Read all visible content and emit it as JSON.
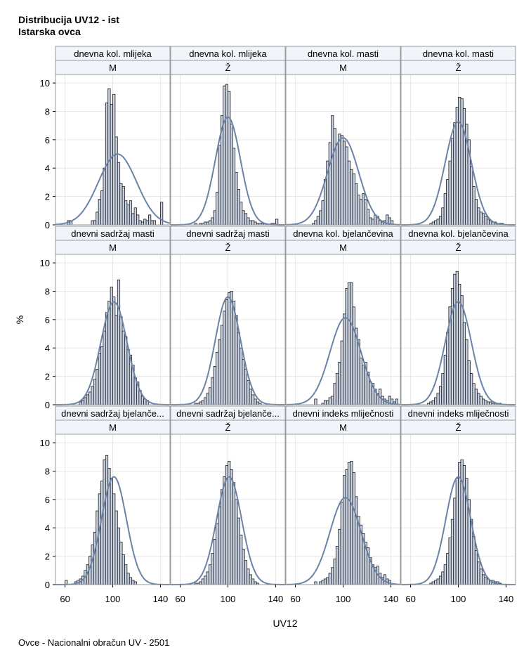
{
  "titles": [
    "Distribucija UV12 - ist",
    "Istarska ovca"
  ],
  "footnote": "Ovce - Nacionalni obračun UV - 2501",
  "colors": {
    "bar_fill": "#c9d2e3",
    "bar_stroke": "#1a1a1a",
    "curve": "#6a84a8",
    "panel_border": "#9a9a9a",
    "header_fill": "#f2f4fb",
    "grid": "#e6e6e6"
  },
  "chart_data": {
    "type": "histogram",
    "xlabel": "UV12",
    "ylabel": "%",
    "xlim": [
      52,
      148
    ],
    "ylim": [
      0,
      10.6
    ],
    "xticks": [
      60,
      100,
      140
    ],
    "yticks": [
      0,
      2,
      4,
      6,
      8,
      10
    ],
    "grid": true,
    "bin_width": 2,
    "panels": [
      {
        "trait": "dnevna kol. mlijeka",
        "sex": "M",
        "mean": 104,
        "sd": 16,
        "heights": [
          0.3,
          0.3,
          0,
          0,
          0,
          0,
          0,
          0,
          0,
          0,
          0.3,
          0.3,
          0.9,
          1.8,
          2.4,
          4,
          8.6,
          9.6,
          8.5,
          9.2,
          6.2,
          4.4,
          2.9,
          2.7,
          1.7,
          1.4,
          1.7,
          0.8,
          1.2,
          0.7,
          0.3,
          0.2,
          0.4,
          0.3,
          0.7,
          0.3,
          0.3,
          0,
          0,
          1.6
        ],
        "start": 62
      },
      {
        "trait": "dnevna kol. mlijeka",
        "sex": "Ž",
        "mean": 100,
        "sd": 10.5,
        "heights": [
          0.1,
          0,
          0.1,
          0.1,
          0.2,
          0.2,
          0.3,
          0.5,
          1,
          2.3,
          5.6,
          7.7,
          9.8,
          9.9,
          9.4,
          7.1,
          5.4,
          3.7,
          2.5,
          1.6,
          1,
          0.8,
          0.5,
          0.3,
          0.3,
          0.2,
          0.1,
          0.1,
          0.1,
          0.1,
          0,
          0,
          0.1,
          0.1,
          0.4
        ],
        "start": 72
      },
      {
        "trait": "dnevna kol. masti",
        "sex": "M",
        "mean": 100,
        "sd": 13,
        "heights": [
          0.1,
          0.3,
          0.6,
          1,
          1.7,
          3.2,
          4.5,
          5.8,
          7.7,
          6.8,
          5.7,
          6.4,
          6.3,
          5.9,
          5.5,
          4.5,
          3.9,
          3.6,
          2.9,
          2.1,
          1.8,
          2.2,
          1.8,
          1.1,
          0.5,
          0.4,
          0.7,
          0.6,
          0.3,
          0.2,
          0.3,
          0.7,
          0.5,
          0.3
        ],
        "start": 74
      },
      {
        "trait": "dnevna kol. masti",
        "sex": "Ž",
        "mean": 100,
        "sd": 11,
        "heights": [
          0.1,
          0.2,
          0.3,
          0.4,
          0.6,
          1.2,
          2.2,
          3.2,
          4.5,
          6.1,
          7.2,
          8.3,
          9,
          8.9,
          8.2,
          7.1,
          6,
          4.1,
          2.7,
          1.8,
          1.2,
          0.9,
          0.8,
          0.6,
          0.4,
          0.3,
          0.2,
          0.2,
          0.1,
          0.1,
          0.1
        ],
        "start": 76
      }
    ],
    "panels_row2": [
      {
        "trait": "dnevni sadržaj masti",
        "sex": "M",
        "mean": 101,
        "sd": 11,
        "heights": [
          0.2,
          0.3,
          0.5,
          0.7,
          0.9,
          1.3,
          1.8,
          2.5,
          3.6,
          4.1,
          5.2,
          6.5,
          7.3,
          8.3,
          7.6,
          6.3,
          8.8,
          6.2,
          5.2,
          4.8,
          3.9,
          3.5,
          2.8,
          1.9,
          1.6,
          1,
          0.6,
          0.4,
          0.3
        ],
        "start": 72
      },
      {
        "trait": "dnevni sadržaj masti",
        "sex": "Ž",
        "mean": 100,
        "sd": 10.5,
        "heights": [
          0.1,
          0.1,
          0.2,
          0.3,
          0.5,
          0.8,
          1.2,
          1.9,
          2.7,
          3.7,
          4.6,
          5.6,
          6.6,
          7.4,
          7.9,
          8,
          7.3,
          6.3,
          5.1,
          4,
          3.2,
          2.5,
          1.7,
          1.1,
          0.7,
          0.4,
          0.2,
          0.1
        ],
        "start": 72
      },
      {
        "trait": "dnevna kol. bjelančevina",
        "sex": "M",
        "mean": 102,
        "sd": 13,
        "heights": [
          0.4,
          0,
          0,
          0.1,
          0.3,
          0.3,
          0.5,
          0.6,
          1.5,
          2.2,
          3,
          4.5,
          6.4,
          8.2,
          8.6,
          8.6,
          6.9,
          5.4,
          4.6,
          3.3,
          2.8,
          3,
          2.3,
          1.6,
          1.5,
          1.1,
          0.8,
          1.1,
          0.6,
          0.4,
          0.3,
          0.6,
          0.4,
          0.2,
          0.4
        ],
        "start": 76
      },
      {
        "trait": "dnevna kol. bjelančevina",
        "sex": "Ž",
        "mean": 100,
        "sd": 11,
        "heights": [
          0.1,
          0.2,
          0.3,
          0.5,
          0.8,
          1.3,
          2.2,
          3.5,
          5.1,
          6.9,
          8.2,
          9.2,
          9.4,
          8.5,
          7.7,
          5.8,
          4.6,
          3.1,
          2.2,
          1.5,
          1.1,
          0.8,
          0.6,
          0.4,
          0.3,
          0.2,
          0.2,
          0.1,
          0.1,
          0.1,
          0.1
        ],
        "start": 74
      }
    ],
    "panels_row3": [
      {
        "trait": "dnevni sadržaj bjelanče...",
        "sex": "M",
        "mean": 101,
        "sd": 10.5,
        "heights": [
          0.3,
          0,
          0,
          0,
          0.2,
          0.3,
          0.4,
          0.6,
          1,
          1.4,
          2,
          2.8,
          3.7,
          5.2,
          6.4,
          7.3,
          8.8,
          9.1,
          8.2,
          7.5,
          6.4,
          5.2,
          4,
          3,
          2.1,
          1.4,
          0.8,
          0.5,
          0.3,
          0.2
        ],
        "start": 60
      },
      {
        "trait": "dnevni sadržaj bjelanče...",
        "sex": "Ž",
        "mean": 101,
        "sd": 10.5,
        "heights": [
          0.1,
          0.1,
          0.2,
          0.4,
          0.6,
          0.9,
          1.4,
          2.2,
          3.2,
          4.3,
          5.5,
          6.7,
          7.6,
          8.4,
          8.7,
          8.1,
          7.2,
          6,
          4.7,
          3.5,
          2.5,
          1.7,
          1.1,
          0.7,
          0.4,
          0.2,
          0.1
        ],
        "start": 72
      },
      {
        "trait": "dnevni indeks mliječnosti",
        "sex": "M",
        "mean": 102,
        "sd": 13,
        "heights": [
          0.2,
          0,
          0.2,
          0.3,
          0.4,
          0.5,
          0.8,
          1.2,
          1.8,
          2.7,
          3.9,
          5.8,
          7.7,
          8.1,
          8.6,
          8.7,
          7.9,
          6.2,
          4.8,
          4.2,
          3.6,
          3,
          2.6,
          1.9,
          1.4,
          1.2,
          1.3,
          0.8,
          0.5,
          0.7,
          0.4,
          0.3
        ],
        "start": 76
      },
      {
        "trait": "dnevni indeks mliječnosti",
        "sex": "Ž",
        "mean": 100,
        "sd": 10.5,
        "heights": [
          0.1,
          0.2,
          0.3,
          0.4,
          0.6,
          0.9,
          1.4,
          2.2,
          3.3,
          4.6,
          6.1,
          7.5,
          8.6,
          8.8,
          8.4,
          7.5,
          6,
          4.6,
          3.4,
          2.4,
          1.6,
          1.1,
          0.7,
          0.5,
          0.4,
          0.3,
          0.3,
          0.2,
          0.2,
          0.1
        ],
        "start": 76
      }
    ]
  }
}
